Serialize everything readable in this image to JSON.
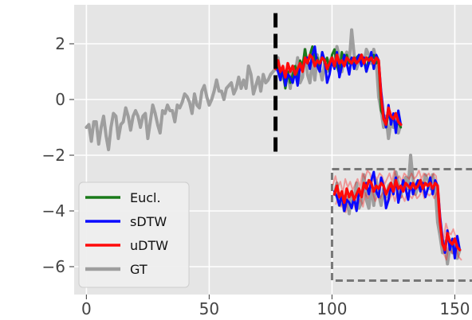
{
  "chart_data": {
    "type": "line",
    "title": "",
    "xlabel": "",
    "ylabel": "",
    "xlim": [
      -5,
      157
    ],
    "ylim": [
      -7,
      3.4
    ],
    "xticks": [
      0,
      50,
      100,
      150
    ],
    "yticks": [
      2,
      0,
      -2,
      -4,
      -6
    ],
    "xtick_labels": [
      "0",
      "50",
      "100",
      "150"
    ],
    "ytick_labels": [
      "2",
      "0",
      "−2",
      "−4",
      "−6"
    ],
    "grid": true,
    "background": "#e5e5e5",
    "legend_position": "lower-left",
    "forecast_start_x": 77,
    "divider": {
      "x": 77,
      "y_range": [
        -1.9,
        3.1
      ]
    },
    "inset_box": {
      "x_range": [
        100,
        159
      ],
      "y_range": [
        -6.5,
        -2.5
      ]
    },
    "inset_offset": {
      "x": 24,
      "y": -4.5
    },
    "series": [
      {
        "name": "GT",
        "color": "#9e9e9e",
        "x_start": 0,
        "values": [
          -1.0,
          -0.9,
          -1.5,
          -0.8,
          -0.8,
          -1.6,
          -1.0,
          -0.6,
          -1.3,
          -1.8,
          -1.0,
          -0.5,
          -0.6,
          -1.4,
          -0.9,
          -0.8,
          -0.3,
          -0.6,
          -1.1,
          -0.6,
          -0.4,
          -0.6,
          -1.0,
          -0.6,
          -0.5,
          -1.4,
          -0.8,
          -0.2,
          -0.5,
          -0.9,
          -1.2,
          -0.4,
          -0.5,
          -0.2,
          -0.4,
          -0.4,
          -0.8,
          -0.2,
          -0.3,
          -0.1,
          0.2,
          0.1,
          -0.1,
          -0.5,
          0.2,
          -0.2,
          -0.3,
          0.3,
          0.5,
          0.1,
          -0.2,
          0.0,
          0.3,
          0.7,
          0.3,
          0.3,
          0.0,
          0.4,
          0.5,
          0.6,
          0.2,
          0.4,
          0.8,
          0.4,
          0.7,
          0.4,
          1.2,
          0.9,
          0.2,
          0.5,
          0.8,
          0.3,
          0.9,
          0.6,
          0.7,
          0.9,
          1.0,
          1.1,
          1.5,
          0.7,
          0.9,
          0.5,
          1.0,
          0.4,
          1.2,
          0.9,
          1.5,
          0.6,
          0.8,
          1.8,
          0.9,
          0.6,
          1.4,
          0.7,
          1.6,
          1.1,
          0.7,
          1.3,
          1.0,
          1.4,
          1.5,
          1.2,
          1.9,
          1.5,
          1.0,
          1.5,
          1.7,
          1.3,
          2.5,
          1.6,
          1.1,
          1.4,
          1.6,
          1.3,
          1.8,
          1.6,
          1.3,
          1.8,
          1.4,
          0.1,
          -0.4,
          -1.0,
          -0.6,
          -1.4,
          -0.8,
          -1.0,
          -0.5,
          -1.2,
          -0.9
        ]
      },
      {
        "name": "Eucl.",
        "color": "#1a7a1a",
        "x_start": 77,
        "values": [
          1.3,
          1.1,
          0.8,
          1.0,
          0.4,
          1.0,
          0.6,
          0.9,
          1.2,
          0.8,
          1.4,
          1.2,
          1.8,
          1.3,
          1.6,
          1.9,
          1.4,
          1.5,
          1.1,
          1.7,
          1.3,
          1.5,
          1.0,
          1.6,
          1.8,
          1.2,
          0.9,
          1.7,
          1.4,
          1.6,
          1.3,
          1.5,
          1.2,
          1.5,
          1.6,
          1.3,
          1.4,
          1.0,
          1.5,
          1.4,
          1.6,
          1.3,
          1.4,
          -0.4,
          -0.6,
          -1.0,
          -0.5,
          -0.7,
          -0.6,
          -1.0,
          -0.8,
          -1.0
        ]
      },
      {
        "name": "sDTW",
        "color": "#0a0aff",
        "x_start": 77,
        "values": [
          1.2,
          1.0,
          0.7,
          1.1,
          0.5,
          0.9,
          0.8,
          0.6,
          1.0,
          0.5,
          1.2,
          1.0,
          1.4,
          1.5,
          1.1,
          1.6,
          1.9,
          1.2,
          1.0,
          1.7,
          1.4,
          0.6,
          0.9,
          1.4,
          1.1,
          1.7,
          0.8,
          1.2,
          1.6,
          1.3,
          0.9,
          1.5,
          1.1,
          1.4,
          1.6,
          1.2,
          1.5,
          1.0,
          1.3,
          1.7,
          1.1,
          1.6,
          1.4,
          0.3,
          -0.5,
          -1.0,
          -0.2,
          -0.9,
          -0.5,
          -1.2,
          -0.4,
          -0.9
        ]
      },
      {
        "name": "uDTW",
        "color": "#ff0a0a",
        "x_start": 77,
        "values": [
          1.1,
          1.4,
          1.0,
          1.2,
          0.8,
          1.3,
          1.0,
          1.2,
          0.9,
          1.1,
          1.3,
          1.0,
          1.5,
          1.3,
          1.6,
          1.5,
          1.2,
          1.4,
          1.3,
          1.5,
          1.4,
          1.1,
          1.3,
          1.5,
          1.2,
          1.6,
          1.3,
          1.4,
          1.2,
          1.5,
          1.4,
          1.3,
          1.5,
          1.3,
          1.4,
          1.6,
          1.3,
          1.5,
          1.4,
          1.5,
          1.3,
          1.5,
          1.4,
          0.1,
          -0.7,
          -0.9,
          -0.3,
          -0.6,
          -0.7,
          -0.5,
          -0.8,
          -0.9
        ]
      }
    ]
  }
}
